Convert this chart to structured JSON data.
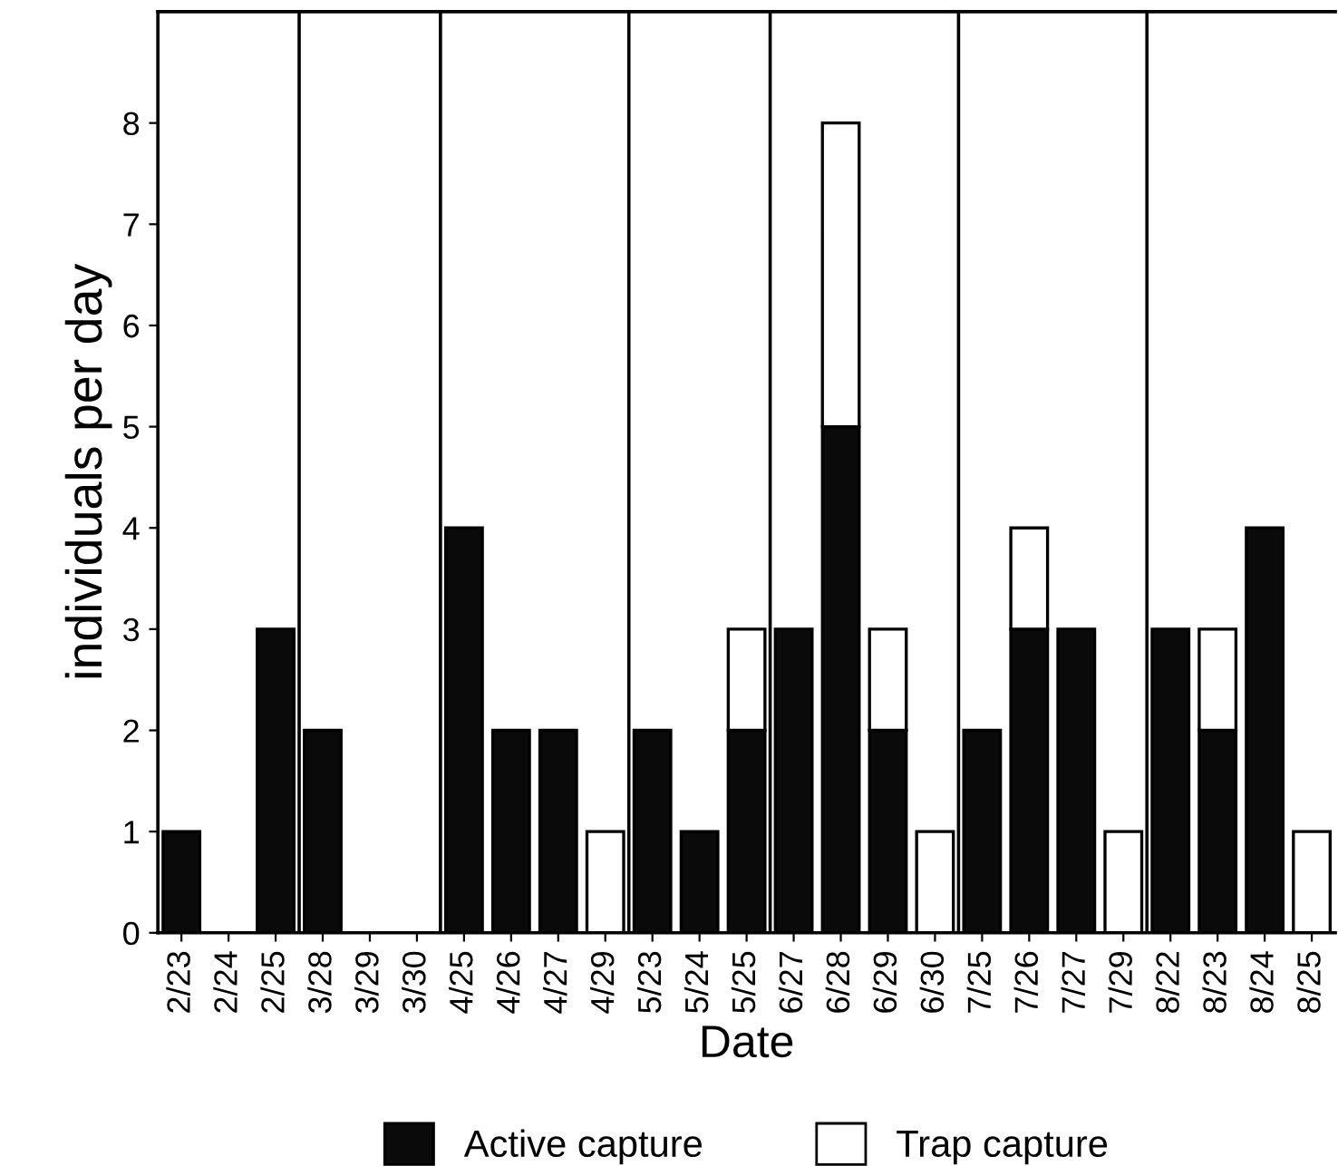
{
  "chart_data": {
    "type": "bar",
    "stacked": true,
    "xlabel": "Date",
    "ylabel": "individuals per day",
    "categories": [
      "2/23",
      "2/24",
      "2/25",
      "3/28",
      "3/29",
      "3/30",
      "4/25",
      "4/26",
      "4/27",
      "4/29",
      "5/23",
      "5/24",
      "5/25",
      "6/27",
      "6/28",
      "6/29",
      "6/30",
      "7/25",
      "7/26",
      "7/27",
      "7/29",
      "8/22",
      "8/23",
      "8/24",
      "8/25"
    ],
    "series": [
      {
        "name": "Active capture",
        "color": "#0a0a0a",
        "values": [
          1,
          0,
          3,
          2,
          0,
          0,
          4,
          2,
          2,
          0,
          2,
          1,
          2,
          3,
          5,
          2,
          0,
          2,
          3,
          3,
          0,
          3,
          2,
          4,
          0
        ]
      },
      {
        "name": "Trap capture",
        "color": "#ffffff",
        "values": [
          0,
          0,
          0,
          0,
          0,
          0,
          0,
          0,
          0,
          1,
          0,
          0,
          1,
          0,
          3,
          1,
          1,
          0,
          1,
          0,
          1,
          0,
          1,
          0,
          1
        ]
      }
    ],
    "ylim": [
      0,
      9.1
    ],
    "yticks": [
      0,
      1,
      2,
      3,
      4,
      5,
      6,
      7,
      8
    ],
    "grid": false,
    "legend": "bottom"
  }
}
